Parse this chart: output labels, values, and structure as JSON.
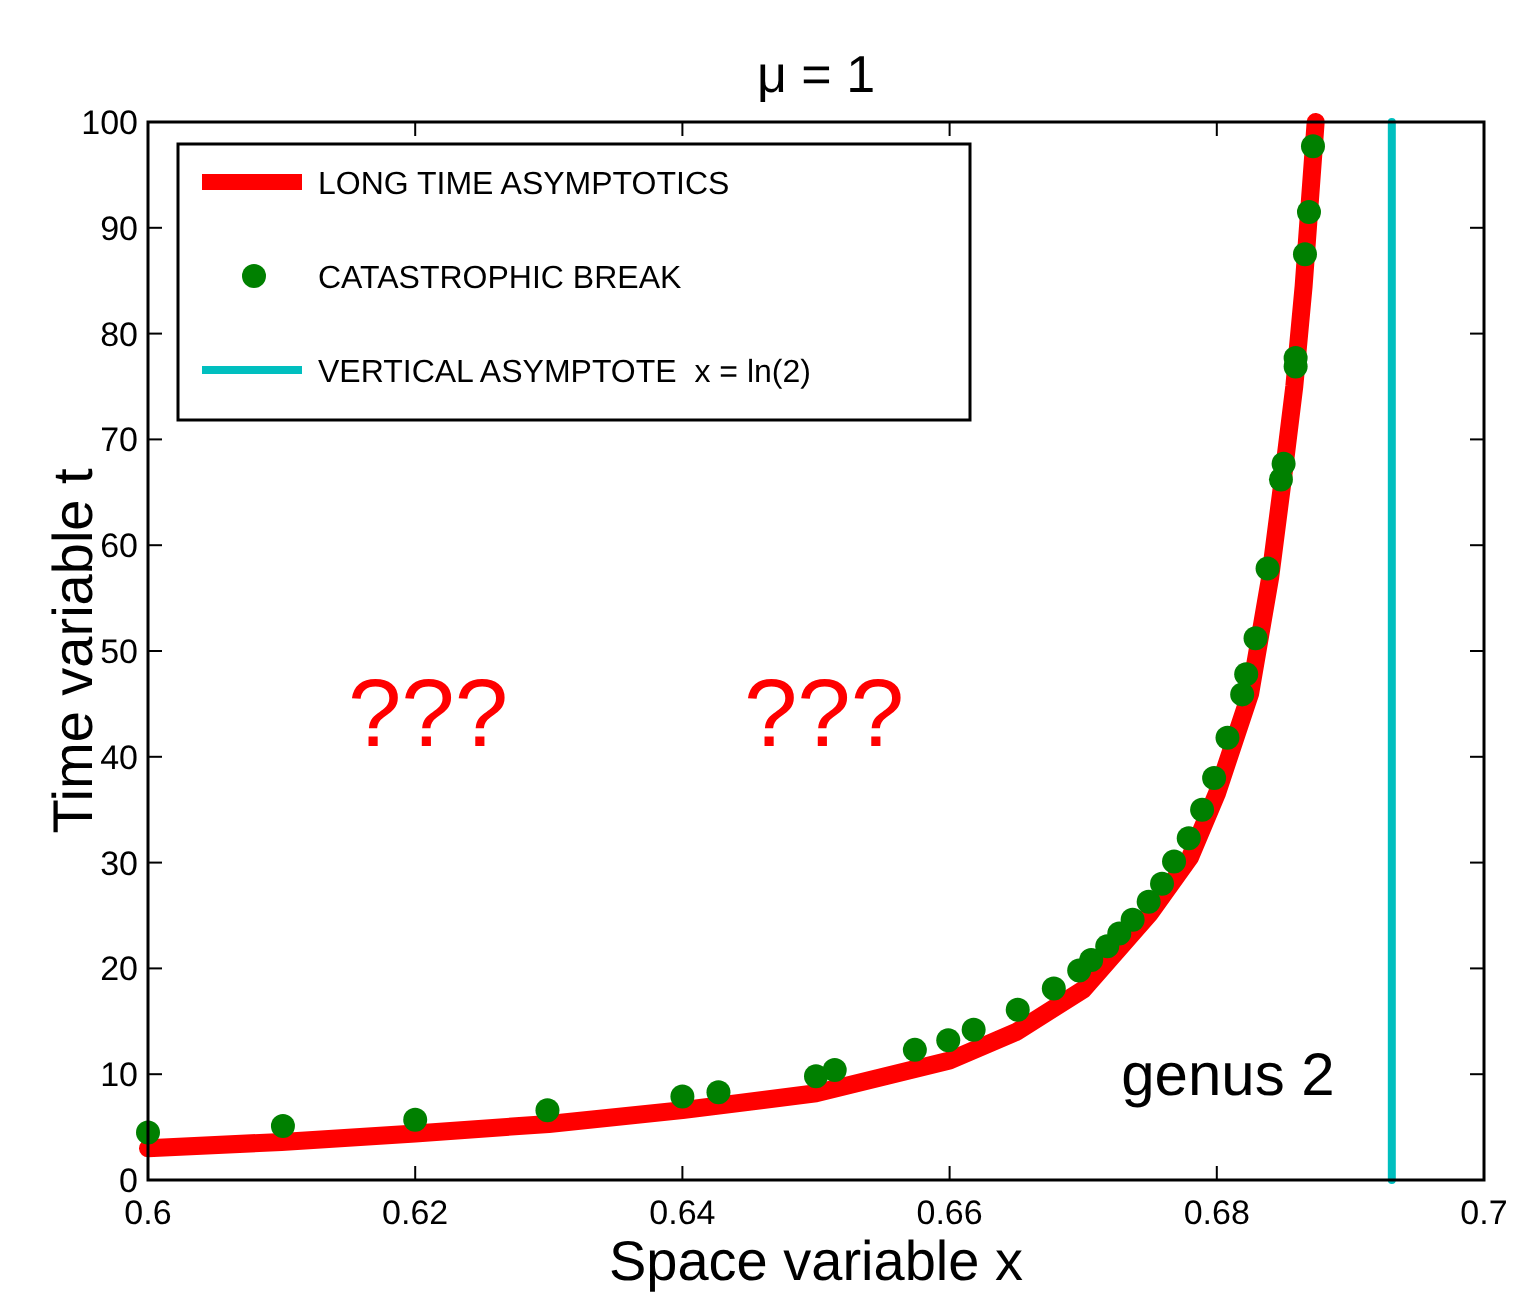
{
  "chart_data": {
    "type": "line",
    "title": "μ = 1",
    "xlabel": "Space variable x",
    "ylabel": "Time variable t",
    "xlim": [
      0.6,
      0.7
    ],
    "xticks": [
      0.6,
      0.62,
      0.64,
      0.66,
      0.68,
      0.7
    ],
    "ylim": [
      0,
      100
    ],
    "yticks": [
      0,
      10,
      20,
      30,
      40,
      50,
      60,
      70,
      80,
      90,
      100
    ],
    "grid": false,
    "legend": "top left",
    "series": [
      {
        "name": "LONG TIME ASYMPTOTICS",
        "type": "line",
        "color": "#ff0000",
        "marker": "none",
        "line_style": "solid",
        "x": [
          0.6,
          0.61,
          0.62,
          0.63,
          0.64,
          0.65,
          0.66,
          0.665,
          0.67,
          0.675,
          0.678,
          0.68,
          0.6825,
          0.684,
          0.685,
          0.6858,
          0.6865,
          0.6874
        ],
        "values": [
          3.0,
          3.6,
          4.4,
          5.3,
          6.6,
          8.2,
          11.3,
          14.0,
          18.0,
          25.2,
          30.5,
          36.5,
          46,
          57,
          66.8,
          75,
          84.5,
          100
        ]
      },
      {
        "name": "CATASTROPHIC BREAK",
        "type": "scatter",
        "color": "#008000",
        "marker": "circle",
        "x": [
          0.6,
          0.6101,
          0.62,
          0.6299,
          0.64,
          0.6427,
          0.65,
          0.6514,
          0.6574,
          0.6599,
          0.6618,
          0.6651,
          0.6678,
          0.6697,
          0.6706,
          0.6718,
          0.6727,
          0.6737,
          0.6749,
          0.6759,
          0.6768,
          0.6779,
          0.6789,
          0.6798,
          0.6808,
          0.6819,
          0.6822,
          0.6829,
          0.6838,
          0.6848,
          0.685,
          0.6859,
          0.6859,
          0.6866,
          0.6869,
          0.6872
        ],
        "values": [
          4.5,
          5.1,
          5.7,
          6.6,
          7.9,
          8.3,
          9.8,
          10.4,
          12.3,
          13.2,
          14.2,
          16.1,
          18.1,
          19.8,
          20.8,
          22.1,
          23.3,
          24.6,
          26.3,
          28.0,
          30.1,
          32.3,
          35.0,
          38.0,
          41.8,
          45.9,
          47.8,
          51.2,
          57.8,
          66.2,
          67.7,
          76.9,
          77.7,
          87.5,
          91.5,
          97.7
        ]
      },
      {
        "name": "VERTICAL ASYMPTOTE  x = ln(2)",
        "type": "line",
        "color": "#00bfbf",
        "marker": "none",
        "line_style": "solid",
        "x": [
          0.6931,
          0.6931
        ],
        "values": [
          0,
          100
        ]
      }
    ],
    "annotations": [
      "???",
      "???",
      "genus 2"
    ]
  }
}
